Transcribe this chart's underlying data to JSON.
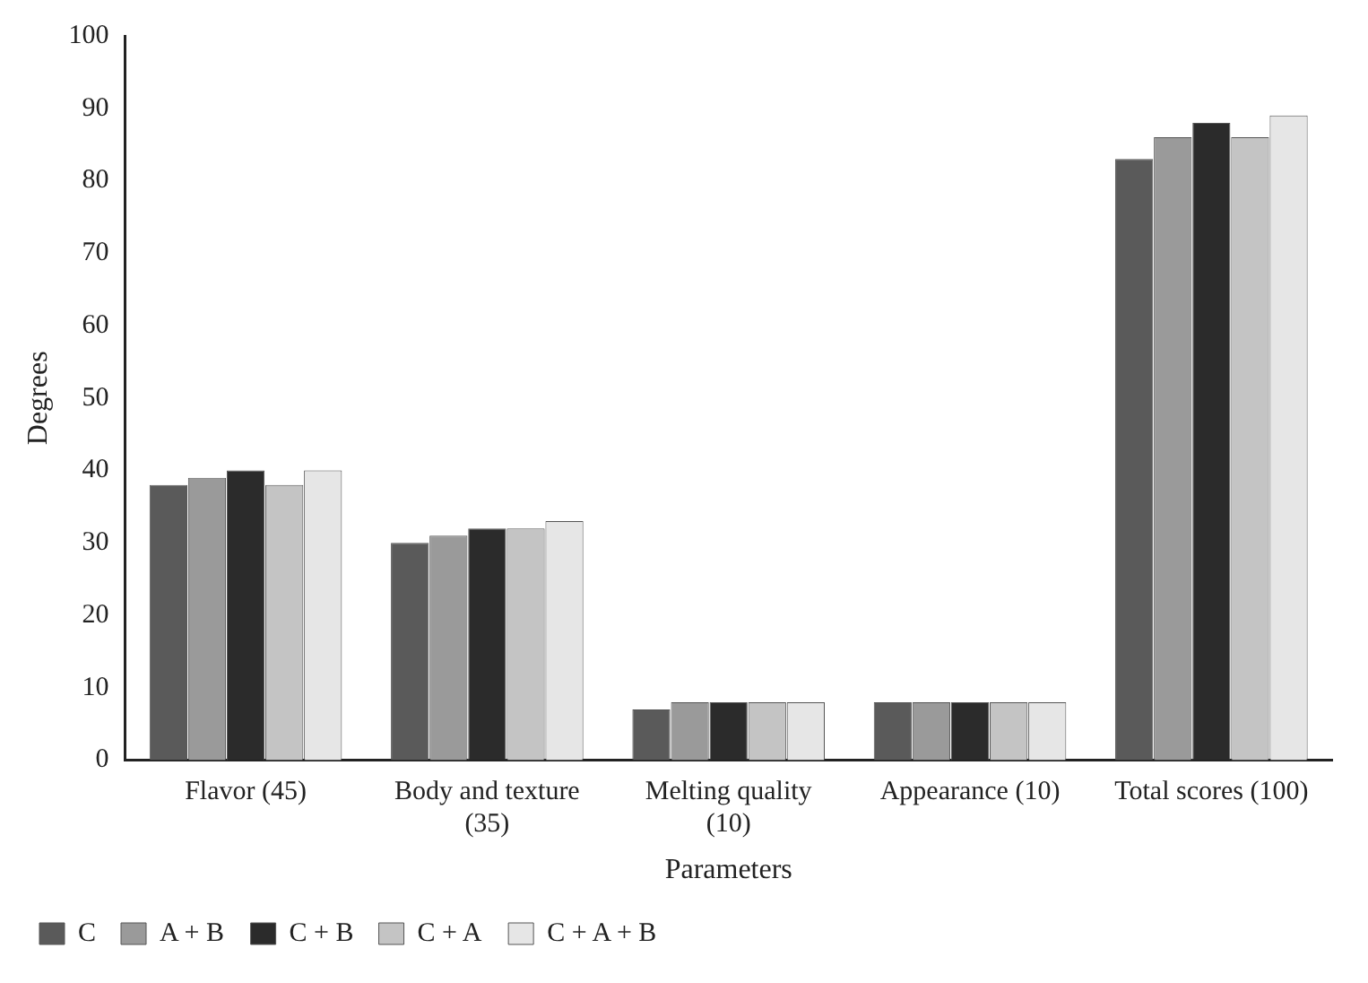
{
  "chart_data": {
    "type": "bar",
    "xlabel": "Parameters",
    "ylabel": "Degrees",
    "categories": [
      "Flavor (45)",
      "Body and texture (35)",
      "Melting quality (10)",
      "Appearance (10)",
      "Total scores (100)"
    ],
    "series": [
      {
        "name": "C",
        "color": "#5a5a5a",
        "values": [
          38,
          30,
          7,
          8,
          83
        ]
      },
      {
        "name": "A + B",
        "color": "#9a9a9a",
        "values": [
          39,
          31,
          8,
          8,
          86
        ]
      },
      {
        "name": "C + B",
        "color": "#2b2b2b",
        "values": [
          40,
          32,
          8,
          8,
          88
        ]
      },
      {
        "name": "C + A",
        "color": "#c4c4c4",
        "values": [
          38,
          32,
          8,
          8,
          86
        ]
      },
      {
        "name": "C + A + B",
        "color": "#e6e6e6",
        "values": [
          40,
          33,
          8,
          8,
          89
        ]
      }
    ],
    "ylim": [
      0,
      100
    ],
    "yticks": [
      0,
      10,
      20,
      30,
      40,
      50,
      60,
      70,
      80,
      90,
      100
    ],
    "grid": false,
    "legend": "bottom left"
  }
}
